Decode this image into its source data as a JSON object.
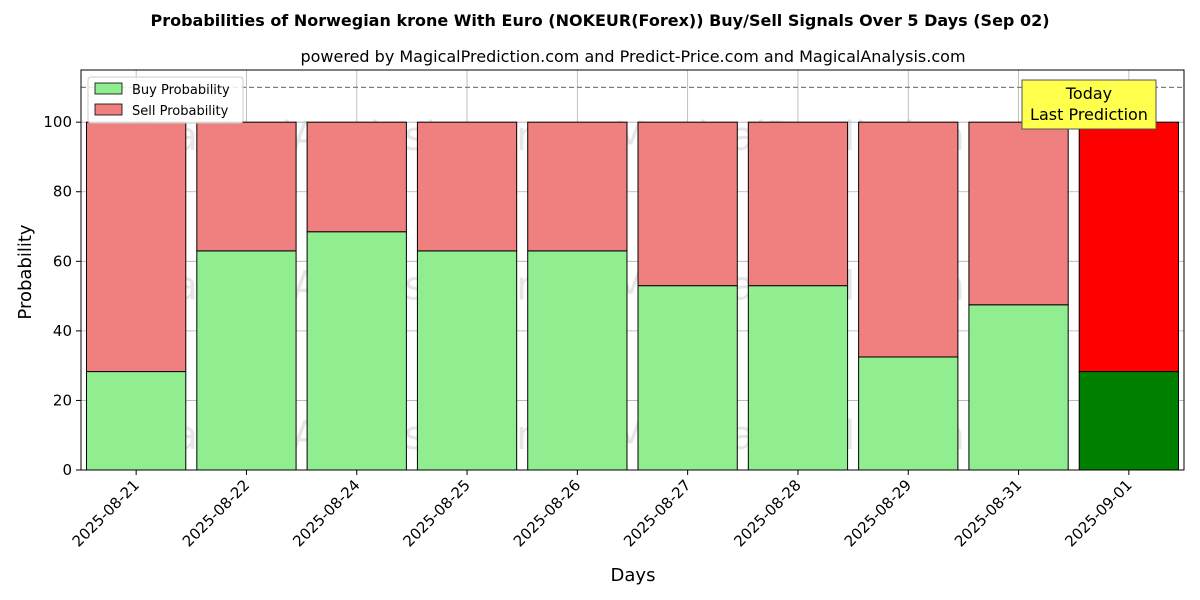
{
  "chart_data": {
    "type": "bar",
    "stacked": true,
    "title": "Probabilities of Norwegian krone With Euro (NOKEUR(Forex)) Buy/Sell Signals Over 5 Days (Sep 02)",
    "subtitle": "powered by MagicalPrediction.com and Predict-Price.com and MagicalAnalysis.com",
    "xlabel": "Days",
    "ylabel": "Probability",
    "ylim": [
      0,
      115
    ],
    "yticks": [
      0,
      20,
      40,
      60,
      80,
      100
    ],
    "grid": true,
    "legend_position": "top-left",
    "reference_line": 110,
    "categories": [
      "2025-08-21",
      "2025-08-22",
      "2025-08-24",
      "2025-08-25",
      "2025-08-26",
      "2025-08-27",
      "2025-08-28",
      "2025-08-29",
      "2025-08-31",
      "2025-09-01"
    ],
    "series": [
      {
        "name": "Buy Probability",
        "values": [
          28.3,
          63.0,
          68.5,
          63.0,
          63.0,
          53.0,
          53.0,
          32.5,
          47.5,
          28.3
        ],
        "color": "#90ee90",
        "highlight_color": "#008000"
      },
      {
        "name": "Sell Probability",
        "values": [
          71.7,
          37.0,
          31.5,
          37.0,
          37.0,
          47.0,
          47.0,
          67.5,
          52.5,
          71.7
        ],
        "color": "#f08080",
        "highlight_color": "#ff0000"
      }
    ],
    "highlight_index": 9,
    "annotation": {
      "lines": [
        "Today",
        "Last Prediction"
      ],
      "background": "#ffff4d"
    },
    "watermarks": [
      "MagicalAnalysis.com",
      "MagicalPrediction.com"
    ]
  }
}
